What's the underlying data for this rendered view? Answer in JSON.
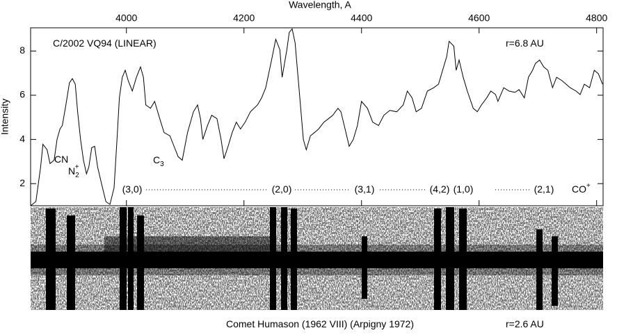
{
  "chart_data": {
    "type": "line",
    "x_label": "Wavelength, A",
    "y_label": "Intensity",
    "xlim": [
      3837,
      4811
    ],
    "ylim": [
      1,
      9.05
    ],
    "xticks": [
      4000,
      4200,
      4400,
      4600,
      4800
    ],
    "yticks": [
      2,
      4,
      6,
      8
    ],
    "color": "#000000",
    "x": [
      3837,
      3846,
      3854,
      3858,
      3865,
      3870,
      3877,
      3882,
      3887,
      3891,
      3897,
      3903,
      3908,
      3913,
      3917,
      3922,
      3927,
      3932,
      3936,
      3941,
      3946,
      3951,
      3958,
      3965,
      3972,
      3979,
      3984,
      3988,
      3993,
      3998,
      4003,
      4010,
      4017,
      4024,
      4029,
      4033,
      4041,
      4048,
      4055,
      4064,
      4074,
      4081,
      4088,
      4095,
      4104,
      4114,
      4121,
      4126,
      4130,
      4138,
      4145,
      4154,
      4161,
      4166,
      4173,
      4180,
      4187,
      4194,
      4202,
      4211,
      4223,
      4230,
      4237,
      4247,
      4254,
      4261,
      4265,
      4273,
      4277,
      4282,
      4287,
      4294,
      4301,
      4306,
      4313,
      4320,
      4327,
      4336,
      4344,
      4351,
      4360,
      4365,
      4372,
      4379,
      4386,
      4393,
      4400,
      4410,
      4419,
      4429,
      4438,
      4448,
      4460,
      4471,
      4478,
      4486,
      4493,
      4502,
      4512,
      4523,
      4531,
      4538,
      4545,
      4549,
      4557,
      4561,
      4566,
      4573,
      4580,
      4590,
      4597,
      4604,
      4613,
      4620,
      4628,
      4632,
      4642,
      4651,
      4661,
      4668,
      4677,
      4684,
      4691,
      4696,
      4703,
      4710,
      4717,
      4725,
      4732,
      4741,
      4748,
      4755,
      4765,
      4772,
      4779,
      4788,
      4796,
      4803,
      4810
    ],
    "values": [
      1.0,
      1.19,
      2.75,
      3.78,
      3.53,
      2.91,
      3.06,
      4.0,
      4.47,
      4.63,
      5.56,
      6.56,
      6.75,
      6.5,
      5.25,
      4.0,
      3.06,
      2.44,
      2.75,
      3.63,
      3.69,
      2.75,
      1.97,
      1.19,
      1.06,
      1.81,
      4.0,
      5.88,
      6.81,
      7.13,
      6.66,
      6.19,
      6.81,
      7.28,
      6.81,
      5.56,
      5.41,
      5.72,
      5.09,
      4.31,
      4.16,
      3.69,
      3.22,
      3.06,
      4.31,
      5.25,
      5.56,
      4.94,
      4.0,
      4.63,
      5.09,
      4.94,
      4.0,
      3.13,
      3.69,
      4.31,
      4.78,
      4.47,
      4.78,
      5.25,
      5.56,
      5.88,
      6.34,
      7.59,
      8.53,
      8.06,
      6.81,
      8.06,
      8.84,
      9.0,
      8.38,
      6.19,
      4.0,
      3.53,
      4.16,
      4.31,
      4.47,
      4.78,
      4.94,
      5.09,
      5.41,
      5.25,
      4.47,
      3.69,
      4.0,
      4.63,
      5.72,
      5.41,
      4.78,
      4.63,
      5.09,
      5.31,
      5.25,
      5.56,
      6.19,
      5.88,
      5.25,
      5.41,
      6.19,
      6.34,
      6.5,
      7.13,
      7.75,
      8.44,
      8.22,
      7.13,
      7.59,
      6.81,
      6.19,
      5.41,
      5.25,
      5.56,
      5.88,
      6.19,
      6.03,
      5.72,
      6.34,
      6.19,
      6.13,
      6.25,
      5.88,
      6.81,
      7.13,
      7.44,
      7.59,
      7.28,
      7.13,
      6.34,
      6.81,
      6.66,
      6.5,
      6.34,
      6.19,
      6.03,
      6.5,
      6.34,
      7.13,
      6.97,
      6.5
    ],
    "annotations": [
      {
        "text": "C/2002 VQ94 (LINEAR)"
      },
      {
        "text": "r=6.8 AU"
      },
      {
        "text": "CN"
      },
      {
        "text": "N",
        "sub": "2",
        "sup": "+"
      },
      {
        "text": "C",
        "sub": "3"
      },
      {
        "text": "(3,0)"
      },
      {
        "text": "(2,0)"
      },
      {
        "text": "(3,1)"
      },
      {
        "text": "(4,2)"
      },
      {
        "text": "(1,0)"
      },
      {
        "text": "(2,1)"
      },
      {
        "text": "CO",
        "sup": "+"
      },
      {
        "text": "Comet Humason (1962 VIII) (Arpigny 1972)"
      },
      {
        "text": "r=2.6 AU"
      }
    ]
  }
}
